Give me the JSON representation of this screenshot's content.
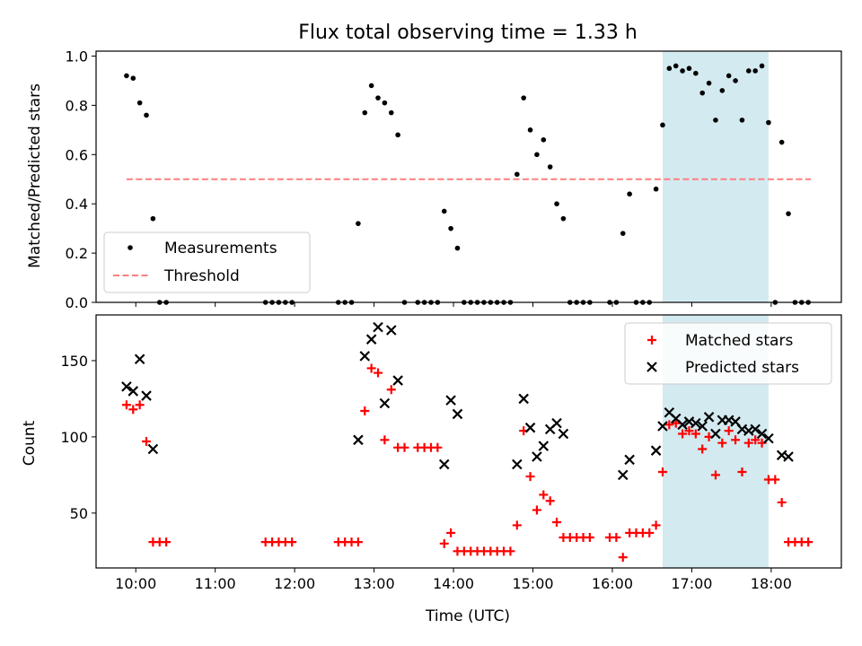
{
  "chart_data": [
    {
      "type": "scatter",
      "title": "Flux total observing time = 1.33 h",
      "ylabel": "Matched/Predicted stars",
      "xlabel": "",
      "xlim": [
        "09:30",
        "18:53"
      ],
      "ylim": [
        0,
        1.02
      ],
      "yticks": [
        "0.0",
        "0.2",
        "0.4",
        "0.6",
        "0.8",
        "1.0"
      ],
      "highlight_span": [
        "16:38",
        "17:58"
      ],
      "highlight_color": "#d3eaf0",
      "legend": {
        "location": "lower-left",
        "entries": [
          "Measurements",
          "Threshold"
        ]
      },
      "threshold": {
        "name": "Threshold",
        "value": 0.5,
        "x_range": [
          "09:53",
          "18:30"
        ],
        "color": "#ff7f7f",
        "style": "dashed"
      },
      "series": [
        {
          "name": "Measurements",
          "color": "#000000",
          "points": [
            [
              "09:53",
              0.92
            ],
            [
              "09:58",
              0.91
            ],
            [
              "10:03",
              0.81
            ],
            [
              "10:08",
              0.76
            ],
            [
              "10:13",
              0.34
            ],
            [
              "10:18",
              0.0
            ],
            [
              "10:23",
              0.0
            ],
            [
              "11:38",
              0.0
            ],
            [
              "11:43",
              0.0
            ],
            [
              "11:48",
              0.0
            ],
            [
              "11:53",
              0.0
            ],
            [
              "11:58",
              0.0
            ],
            [
              "12:33",
              0.0
            ],
            [
              "12:38",
              0.0
            ],
            [
              "12:43",
              0.0
            ],
            [
              "12:48",
              0.32
            ],
            [
              "12:53",
              0.77
            ],
            [
              "12:58",
              0.88
            ],
            [
              "13:03",
              0.83
            ],
            [
              "13:08",
              0.81
            ],
            [
              "13:13",
              0.77
            ],
            [
              "13:18",
              0.68
            ],
            [
              "13:23",
              0.0
            ],
            [
              "13:33",
              0.0
            ],
            [
              "13:38",
              0.0
            ],
            [
              "13:43",
              0.0
            ],
            [
              "13:48",
              0.0
            ],
            [
              "13:53",
              0.37
            ],
            [
              "13:58",
              0.3
            ],
            [
              "14:03",
              0.22
            ],
            [
              "14:08",
              0.0
            ],
            [
              "14:13",
              0.0
            ],
            [
              "14:18",
              0.0
            ],
            [
              "14:23",
              0.0
            ],
            [
              "14:28",
              0.0
            ],
            [
              "14:33",
              0.0
            ],
            [
              "14:38",
              0.0
            ],
            [
              "14:43",
              0.0
            ],
            [
              "14:48",
              0.52
            ],
            [
              "14:53",
              0.83
            ],
            [
              "14:58",
              0.7
            ],
            [
              "15:03",
              0.6
            ],
            [
              "15:08",
              0.66
            ],
            [
              "15:13",
              0.55
            ],
            [
              "15:18",
              0.4
            ],
            [
              "15:23",
              0.34
            ],
            [
              "15:28",
              0.0
            ],
            [
              "15:33",
              0.0
            ],
            [
              "15:38",
              0.0
            ],
            [
              "15:43",
              0.0
            ],
            [
              "15:58",
              0.0
            ],
            [
              "16:03",
              0.0
            ],
            [
              "16:08",
              0.28
            ],
            [
              "16:13",
              0.44
            ],
            [
              "16:18",
              0.0
            ],
            [
              "16:23",
              0.0
            ],
            [
              "16:28",
              0.0
            ],
            [
              "16:33",
              0.46
            ],
            [
              "16:38",
              0.72
            ],
            [
              "16:43",
              0.95
            ],
            [
              "16:48",
              0.96
            ],
            [
              "16:53",
              0.94
            ],
            [
              "16:58",
              0.95
            ],
            [
              "17:03",
              0.93
            ],
            [
              "17:08",
              0.85
            ],
            [
              "17:13",
              0.89
            ],
            [
              "17:18",
              0.74
            ],
            [
              "17:23",
              0.86
            ],
            [
              "17:28",
              0.92
            ],
            [
              "17:33",
              0.9
            ],
            [
              "17:38",
              0.74
            ],
            [
              "17:43",
              0.94
            ],
            [
              "17:48",
              0.94
            ],
            [
              "17:53",
              0.96
            ],
            [
              "17:58",
              0.73
            ],
            [
              "18:03",
              0.0
            ],
            [
              "18:08",
              0.65
            ],
            [
              "18:13",
              0.36
            ],
            [
              "18:18",
              0.0
            ],
            [
              "18:23",
              0.0
            ],
            [
              "18:28",
              0.0
            ]
          ]
        }
      ]
    },
    {
      "type": "scatter",
      "title": "",
      "xlabel": "Time (UTC)",
      "ylabel": "Count",
      "xlim": [
        "09:30",
        "18:53"
      ],
      "ylim": [
        14,
        180
      ],
      "xticks": [
        "10:00",
        "11:00",
        "12:00",
        "13:00",
        "14:00",
        "15:00",
        "16:00",
        "17:00",
        "18:00"
      ],
      "yticks": [
        "50",
        "100",
        "150"
      ],
      "highlight_span": [
        "16:38",
        "17:58"
      ],
      "highlight_color": "#d3eaf0",
      "legend": {
        "location": "top-right",
        "entries": [
          "Matched stars",
          "Predicted stars"
        ]
      },
      "series": [
        {
          "name": "Matched stars",
          "marker": "plus",
          "color": "#ff0000",
          "points": [
            [
              "09:53",
              121
            ],
            [
              "09:58",
              118
            ],
            [
              "10:03",
              121
            ],
            [
              "10:08",
              97
            ],
            [
              "10:13",
              31
            ],
            [
              "10:18",
              31
            ],
            [
              "10:23",
              31
            ],
            [
              "11:38",
              31
            ],
            [
              "11:43",
              31
            ],
            [
              "11:48",
              31
            ],
            [
              "11:53",
              31
            ],
            [
              "11:58",
              31
            ],
            [
              "12:33",
              31
            ],
            [
              "12:38",
              31
            ],
            [
              "12:43",
              31
            ],
            [
              "12:48",
              31
            ],
            [
              "12:53",
              117
            ],
            [
              "12:58",
              145
            ],
            [
              "13:03",
              142
            ],
            [
              "13:08",
              98
            ],
            [
              "13:13",
              131
            ],
            [
              "13:18",
              93
            ],
            [
              "13:23",
              93
            ],
            [
              "13:33",
              93
            ],
            [
              "13:38",
              93
            ],
            [
              "13:43",
              93
            ],
            [
              "13:48",
              93
            ],
            [
              "13:53",
              30
            ],
            [
              "13:58",
              37
            ],
            [
              "14:03",
              25
            ],
            [
              "14:08",
              25
            ],
            [
              "14:13",
              25
            ],
            [
              "14:18",
              25
            ],
            [
              "14:23",
              25
            ],
            [
              "14:28",
              25
            ],
            [
              "14:33",
              25
            ],
            [
              "14:38",
              25
            ],
            [
              "14:43",
              25
            ],
            [
              "14:48",
              42
            ],
            [
              "14:53",
              104
            ],
            [
              "14:58",
              74
            ],
            [
              "15:03",
              52
            ],
            [
              "15:08",
              62
            ],
            [
              "15:13",
              58
            ],
            [
              "15:18",
              44
            ],
            [
              "15:23",
              34
            ],
            [
              "15:28",
              34
            ],
            [
              "15:33",
              34
            ],
            [
              "15:38",
              34
            ],
            [
              "15:43",
              34
            ],
            [
              "15:58",
              34
            ],
            [
              "16:03",
              34
            ],
            [
              "16:08",
              21
            ],
            [
              "16:13",
              37
            ],
            [
              "16:18",
              37
            ],
            [
              "16:23",
              37
            ],
            [
              "16:28",
              37
            ],
            [
              "16:33",
              42
            ],
            [
              "16:38",
              77
            ],
            [
              "16:43",
              108
            ],
            [
              "16:48",
              109
            ],
            [
              "16:53",
              102
            ],
            [
              "16:58",
              104
            ],
            [
              "17:03",
              102
            ],
            [
              "17:08",
              92
            ],
            [
              "17:13",
              100
            ],
            [
              "17:18",
              75
            ],
            [
              "17:23",
              96
            ],
            [
              "17:28",
              104
            ],
            [
              "17:33",
              98
            ],
            [
              "17:38",
              77
            ],
            [
              "17:43",
              96
            ],
            [
              "17:48",
              98
            ],
            [
              "17:53",
              96
            ],
            [
              "17:58",
              72
            ],
            [
              "18:03",
              72
            ],
            [
              "18:08",
              57
            ],
            [
              "18:13",
              31
            ],
            [
              "18:18",
              31
            ],
            [
              "18:23",
              31
            ],
            [
              "18:28",
              31
            ]
          ]
        },
        {
          "name": "Predicted stars",
          "marker": "x",
          "color": "#000000",
          "points": [
            [
              "09:53",
              133
            ],
            [
              "09:58",
              130
            ],
            [
              "10:03",
              151
            ],
            [
              "10:08",
              127
            ],
            [
              "10:13",
              92
            ],
            [
              "12:48",
              98
            ],
            [
              "12:53",
              153
            ],
            [
              "12:58",
              164
            ],
            [
              "13:03",
              172
            ],
            [
              "13:08",
              122
            ],
            [
              "13:13",
              170
            ],
            [
              "13:18",
              137
            ],
            [
              "13:53",
              82
            ],
            [
              "13:58",
              124
            ],
            [
              "14:03",
              115
            ],
            [
              "14:48",
              82
            ],
            [
              "14:53",
              125
            ],
            [
              "14:58",
              106
            ],
            [
              "15:03",
              87
            ],
            [
              "15:08",
              94
            ],
            [
              "15:13",
              105
            ],
            [
              "15:18",
              109
            ],
            [
              "15:23",
              102
            ],
            [
              "16:08",
              75
            ],
            [
              "16:13",
              85
            ],
            [
              "16:33",
              91
            ],
            [
              "16:38",
              107
            ],
            [
              "16:43",
              116
            ],
            [
              "16:48",
              112
            ],
            [
              "16:53",
              108
            ],
            [
              "16:58",
              110
            ],
            [
              "17:03",
              109
            ],
            [
              "17:08",
              107
            ],
            [
              "17:13",
              113
            ],
            [
              "17:18",
              102
            ],
            [
              "17:23",
              111
            ],
            [
              "17:28",
              111
            ],
            [
              "17:33",
              110
            ],
            [
              "17:38",
              105
            ],
            [
              "17:43",
              104
            ],
            [
              "17:48",
              105
            ],
            [
              "17:53",
              102
            ],
            [
              "17:58",
              99
            ],
            [
              "18:08",
              88
            ],
            [
              "18:13",
              87
            ]
          ]
        }
      ]
    }
  ]
}
